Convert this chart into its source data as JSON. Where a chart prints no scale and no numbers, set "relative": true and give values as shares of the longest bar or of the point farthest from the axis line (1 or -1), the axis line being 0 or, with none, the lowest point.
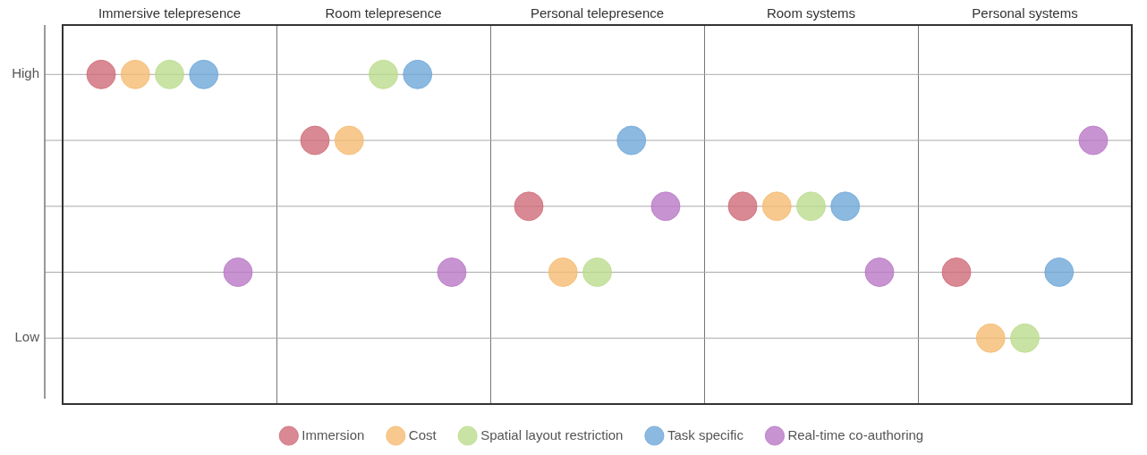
{
  "chart_data": {
    "type": "scatter",
    "relative": true,
    "categories": [
      "Immersive telepresence",
      "Room telepresence",
      "Personal telepresence",
      "Room systems",
      "Personal systems"
    ],
    "series": [
      {
        "name": "Immersion",
        "color": "#d06b78",
        "values": [
          1,
          0.8,
          0.6,
          0.6,
          0.4
        ]
      },
      {
        "name": "Cost",
        "color": "#f5bc72",
        "values": [
          1,
          0.8,
          0.4,
          0.6,
          0.2
        ]
      },
      {
        "name": "Spatial layout restriction",
        "color": "#bcdc8e",
        "values": [
          1,
          1,
          0.4,
          0.6,
          0.2
        ]
      },
      {
        "name": "Task specific",
        "color": "#6fa8d8",
        "values": [
          1,
          1,
          0.8,
          0.6,
          0.4
        ]
      },
      {
        "name": "Real-time co-authoring",
        "color": "#b978c6",
        "values": [
          0.4,
          0.4,
          0.6,
          0.4,
          0.8
        ]
      }
    ],
    "annotations": [
      "High",
      "Low"
    ],
    "grid": true,
    "legend": "bottom",
    "marker": "circle"
  }
}
